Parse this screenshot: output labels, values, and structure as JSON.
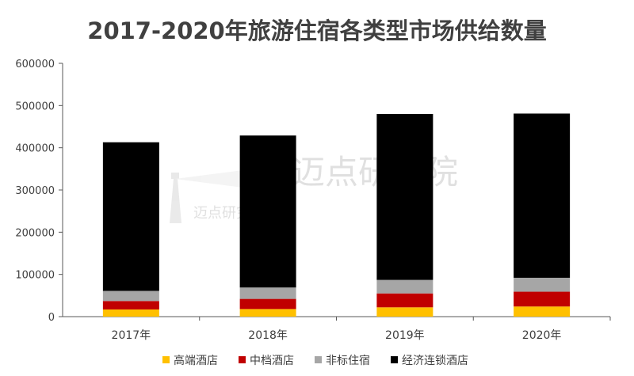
{
  "page_title": "2017-2020年旅游住宿各类型市场供给数量",
  "watermark": "迈点研究院",
  "chart_data": {
    "type": "bar",
    "stacked": true,
    "title": "2017-2020年旅游住宿各类型市场供给数量",
    "xlabel": "",
    "ylabel": "",
    "categories": [
      "2017年",
      "2018年",
      "2019年",
      "2020年"
    ],
    "ylim": [
      0,
      600000
    ],
    "yticks": [
      "0",
      "100000",
      "200000",
      "300000",
      "400000",
      "500000",
      "600000"
    ],
    "ytick_values": [
      0,
      100000,
      200000,
      300000,
      400000,
      500000,
      600000
    ],
    "grid": false,
    "legend_position": "bottom",
    "series": [
      {
        "name": "高端酒店",
        "color": "#FFC000",
        "values": [
          17000,
          18000,
          22000,
          24000
        ]
      },
      {
        "name": "中档酒店",
        "color": "#C00000",
        "values": [
          20000,
          24000,
          33000,
          35000
        ]
      },
      {
        "name": "非标住宿",
        "color": "#A6A6A6",
        "values": [
          24000,
          27000,
          32000,
          33000
        ]
      },
      {
        "name": "经济连锁酒店",
        "color": "#000000",
        "values": [
          352000,
          360000,
          393000,
          389000
        ]
      }
    ]
  }
}
